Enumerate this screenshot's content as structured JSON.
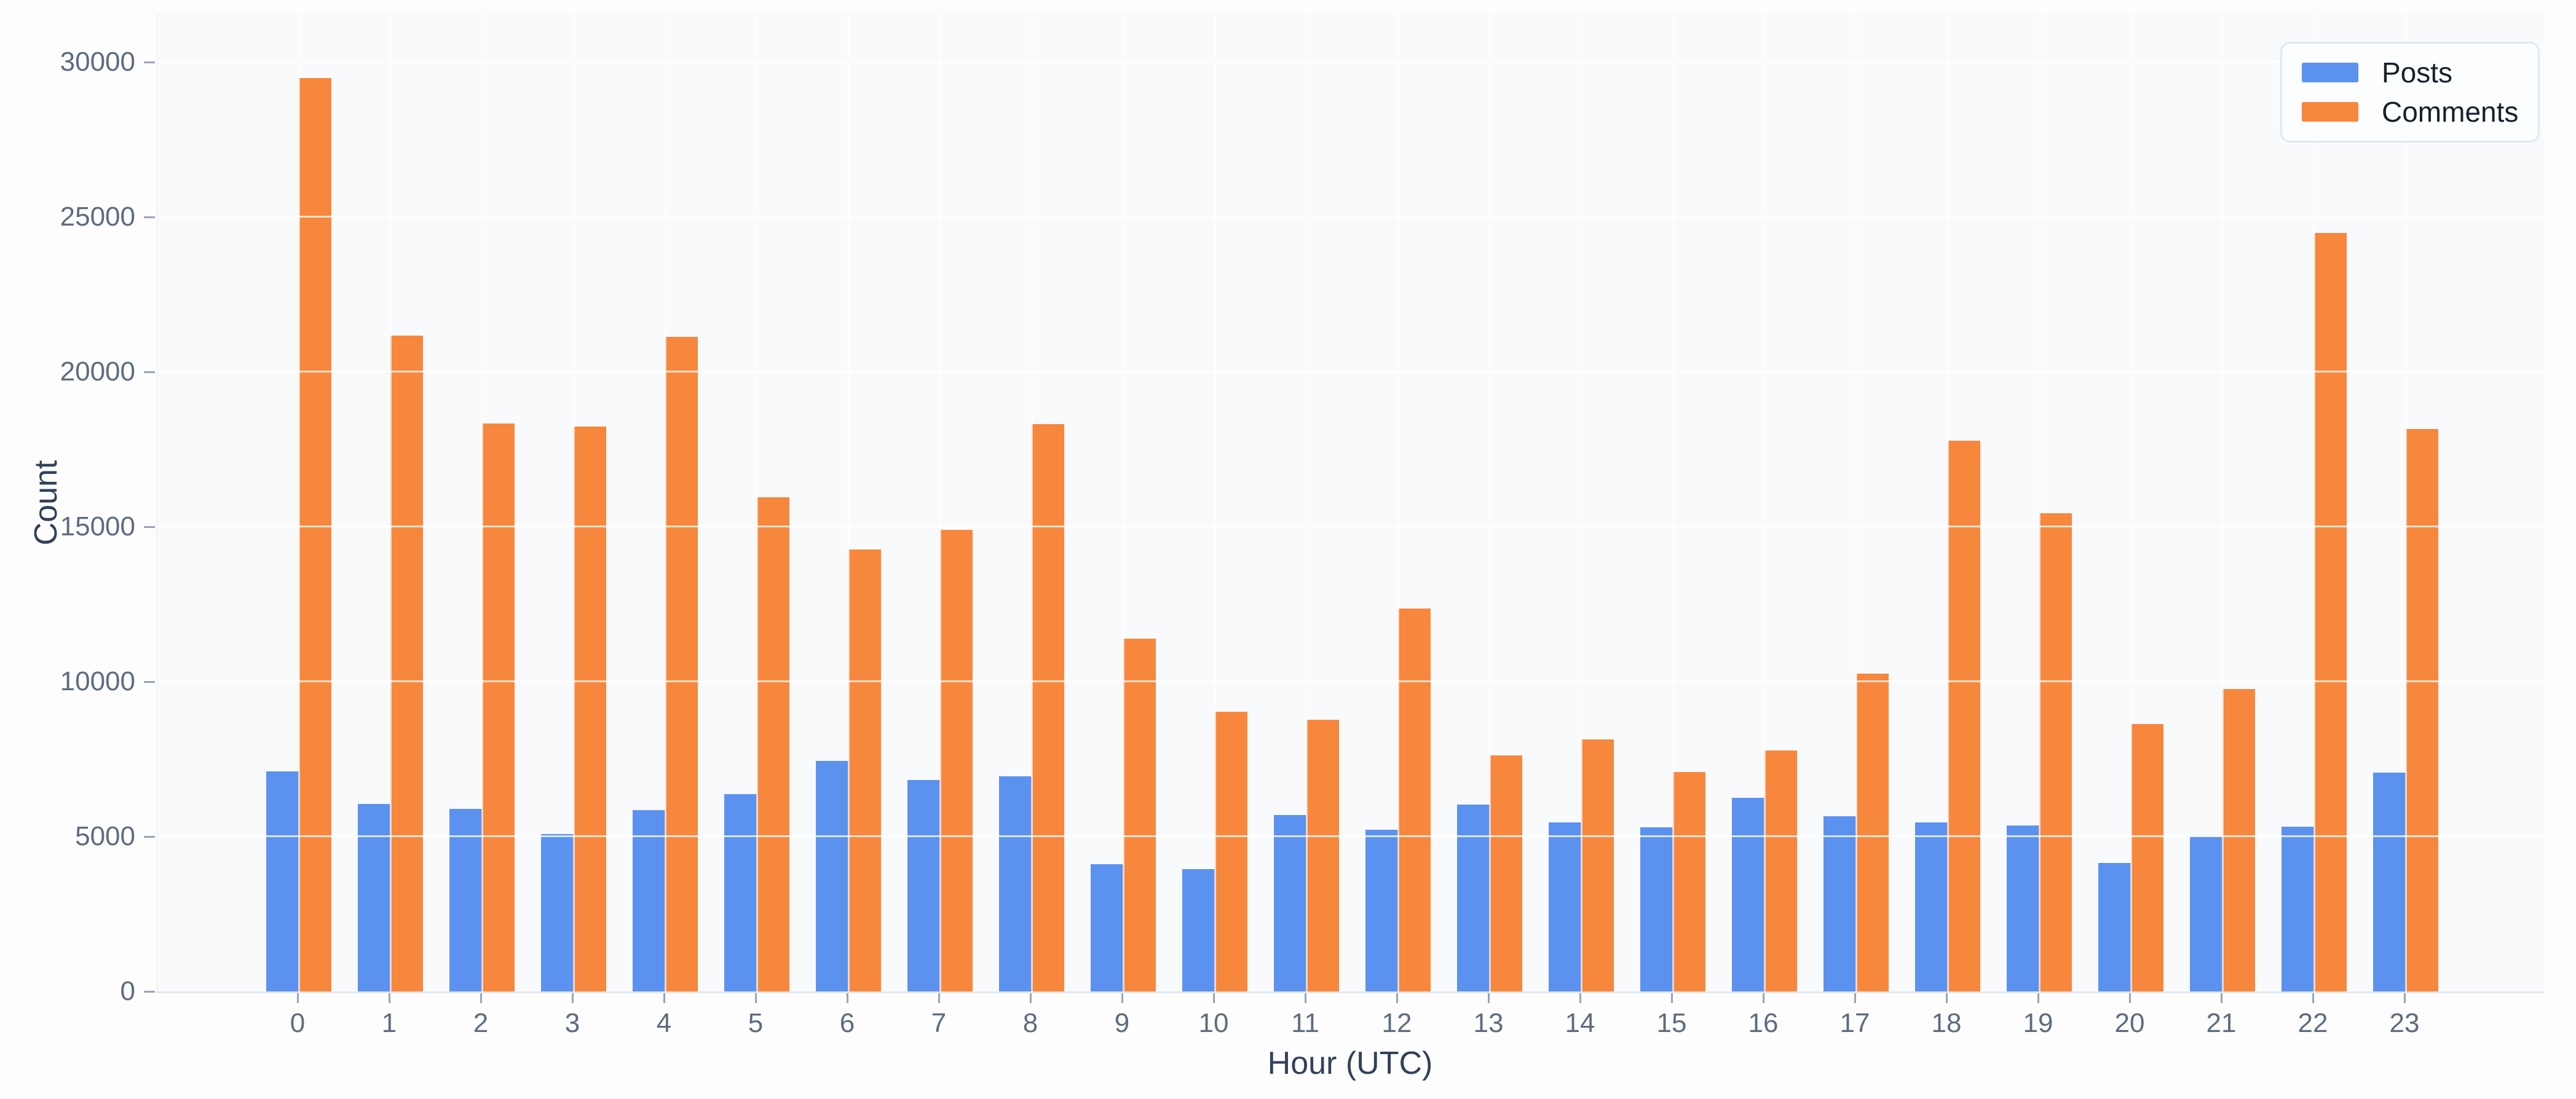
{
  "chart_data": {
    "type": "bar",
    "title": "",
    "xlabel": "Hour (UTC)",
    "ylabel": "Count",
    "categories": [
      "0",
      "1",
      "2",
      "3",
      "4",
      "5",
      "6",
      "7",
      "8",
      "9",
      "10",
      "11",
      "12",
      "13",
      "14",
      "15",
      "16",
      "17",
      "18",
      "19",
      "20",
      "21",
      "22",
      "23"
    ],
    "series": [
      {
        "name": "Posts",
        "color": "#5b92f0",
        "values": [
          7110,
          6050,
          5900,
          5080,
          5850,
          6360,
          7450,
          6820,
          6950,
          4100,
          3950,
          5690,
          5210,
          6040,
          5450,
          5300,
          6250,
          5660,
          5450,
          5350,
          4150,
          5000,
          5320,
          7060
        ]
      },
      {
        "name": "Comments",
        "color": "#f6873d",
        "values": [
          29490,
          21180,
          18330,
          18230,
          21130,
          15950,
          14260,
          14900,
          18320,
          11390,
          9030,
          8760,
          12370,
          7620,
          8140,
          7080,
          7780,
          10250,
          17770,
          15430,
          8640,
          9760,
          24480,
          18160
        ]
      }
    ],
    "y_ticks": [
      0,
      5000,
      10000,
      15000,
      20000,
      25000,
      30000
    ],
    "y_tick_labels": [
      "0",
      "5000",
      "10000",
      "15000",
      "20000",
      "25000",
      "30000"
    ],
    "ylim": [
      0,
      31570
    ],
    "grid": "horizontal and vertical light gridlines drawn over bars",
    "legend_position": "upper right",
    "legend": {
      "items": [
        {
          "label": "Posts",
          "color": "#5b92f0"
        },
        {
          "label": "Comments",
          "color": "#f6873d"
        }
      ]
    }
  },
  "colors": {
    "plot_background": "#f8fafc",
    "figure_background": "#fdfdfe",
    "tick_label": "#5d6c7f",
    "axis_title": "#32405a",
    "legend_text": "#16202e",
    "posts_blue": "#5b92f0",
    "comments_orange": "#f6873d"
  }
}
